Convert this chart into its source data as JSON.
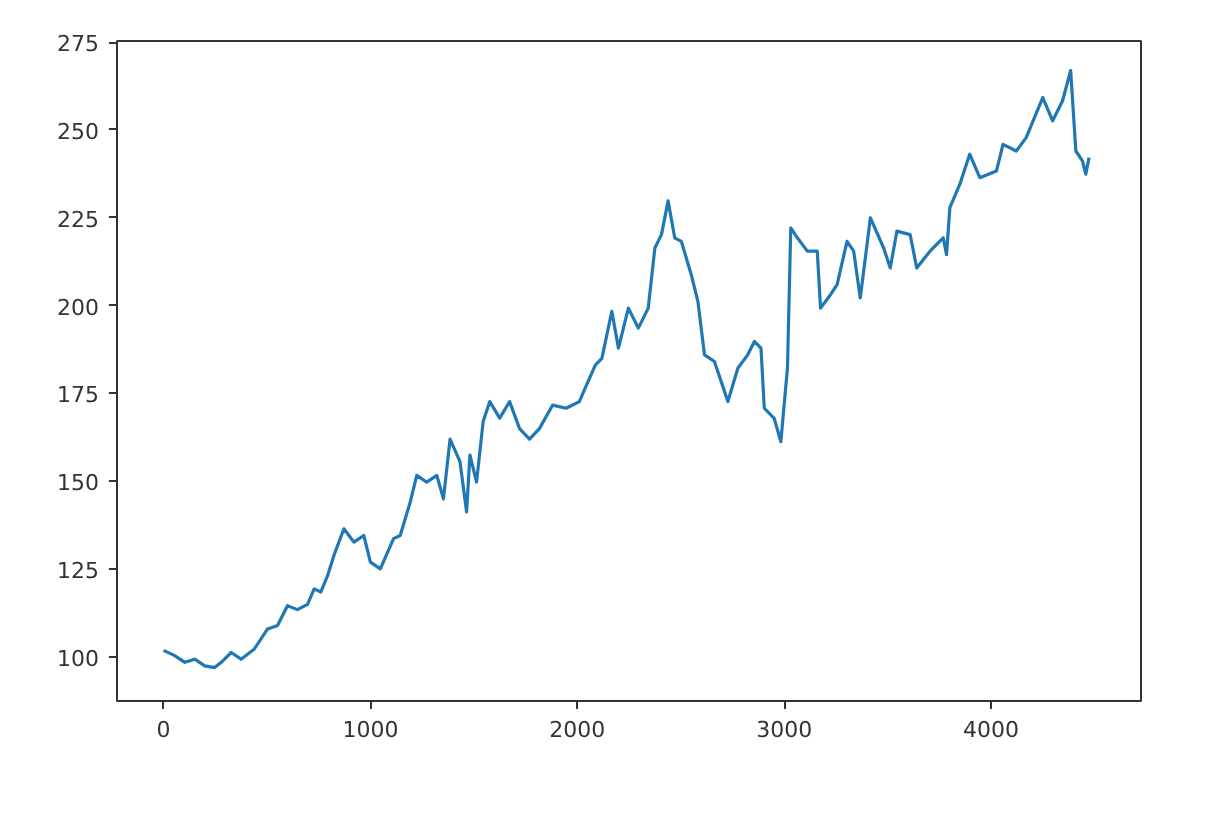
{
  "chart_data": {
    "type": "line",
    "x": [
      0,
      54,
      103,
      151,
      199,
      247,
      279,
      327,
      375,
      439,
      503,
      551,
      599,
      647,
      696,
      728,
      760,
      792,
      824,
      872,
      920,
      968,
      1000,
      1048,
      1112,
      1144,
      1192,
      1224,
      1272,
      1321,
      1353,
      1385,
      1433,
      1465,
      1481,
      1513,
      1545,
      1577,
      1625,
      1673,
      1721,
      1769,
      1817,
      1881,
      1946,
      2010,
      2038,
      2087,
      2119,
      2167,
      2199,
      2247,
      2295,
      2343,
      2375,
      2407,
      2439,
      2471,
      2503,
      2551,
      2583,
      2615,
      2663,
      2728,
      2776,
      2824,
      2856,
      2888,
      2904,
      2952,
      2984,
      3016,
      3032,
      3064,
      3112,
      3160,
      3176,
      3224,
      3256,
      3304,
      3336,
      3368,
      3417,
      3481,
      3513,
      3545,
      3609,
      3641,
      3705,
      3769,
      3785,
      3801,
      3849,
      3897,
      3946,
      4026,
      4058,
      4122,
      4170,
      4250,
      4298,
      4346,
      4385,
      4410,
      4442,
      4458,
      4474
    ],
    "series": [
      {
        "color": "#1f77b4",
        "values": [
          101.9,
          100.4,
          98.5,
          99.4,
          97.5,
          97,
          98.5,
          101.3,
          99.4,
          102.3,
          108,
          109,
          114.6,
          113.5,
          115,
          119.4,
          118.5,
          123,
          129,
          136.5,
          132.7,
          134.6,
          127,
          125.1,
          133.7,
          134.6,
          144,
          151.7,
          149.8,
          151.7,
          145,
          162,
          155.6,
          141.3,
          157.5,
          149.8,
          167,
          172.7,
          168,
          172.7,
          165,
          162,
          165,
          171.7,
          170.8,
          172.7,
          176.5,
          183.1,
          185,
          198.4,
          187.9,
          199.3,
          193.6,
          199.3,
          216.4,
          220.2,
          229.8,
          219.3,
          218.3,
          208.8,
          201.2,
          186,
          184.1,
          172.7,
          182.2,
          186,
          189.8,
          187.9,
          170.8,
          167.9,
          161.3,
          182.2,
          222.1,
          219.3,
          215.5,
          215.5,
          199.3,
          203.1,
          206,
          218.3,
          215.5,
          202.2,
          225,
          216.4,
          210.7,
          221.2,
          220.2,
          210.7,
          215.5,
          219.3,
          214.5,
          227.9,
          234.5,
          243.1,
          236.4,
          238.3,
          245.9,
          244,
          247.8,
          259.2,
          252.6,
          258.3,
          266.9,
          244,
          241.2,
          237.4,
          242.1
        ]
      }
    ],
    "xlim": [
      -225,
      4725
    ],
    "ylim": [
      87.5,
      275.3
    ],
    "xticks": [
      0,
      1000,
      2000,
      3000,
      4000
    ],
    "yticks": [
      100,
      125,
      150,
      175,
      200,
      225,
      250,
      275
    ],
    "grid": false,
    "line_style": "solid",
    "marker": "none"
  }
}
